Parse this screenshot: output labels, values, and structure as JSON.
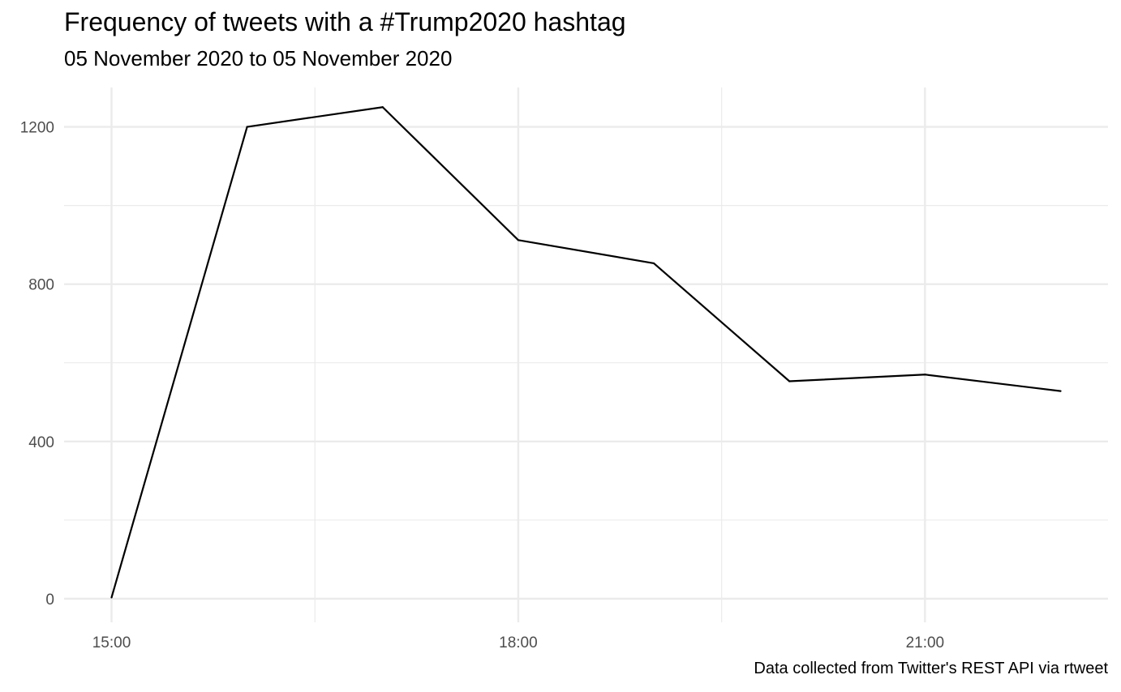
{
  "chart_data": {
    "type": "line",
    "title": "Frequency of tweets with a #Trump2020 hashtag",
    "subtitle": "05 November 2020 to 05 November 2020",
    "caption": "Data collected from Twitter's REST API via rtweet",
    "xlabel": "",
    "ylabel": "",
    "x_unit": "hour of day",
    "xlim": [
      14.65,
      22.35
    ],
    "ylim": [
      -60,
      1300
    ],
    "x_major_ticks": [
      15,
      18,
      21
    ],
    "x_tick_labels": [
      "15:00",
      "18:00",
      "21:00"
    ],
    "x_minor_ticks": [
      16.5,
      19.5
    ],
    "y_major_ticks": [
      0,
      400,
      800,
      1200
    ],
    "y_tick_labels": [
      "0",
      "400",
      "800",
      "1200"
    ],
    "y_minor_ticks": [
      200,
      600,
      1000
    ],
    "grid": true,
    "legend": "none",
    "line_color": "#000000",
    "grid_color": "#ebebeb",
    "series": [
      {
        "x": [
          15,
          16,
          17,
          18,
          19,
          20,
          21,
          22
        ],
        "values": [
          3,
          1200,
          1250,
          912,
          853,
          553,
          570,
          528
        ]
      }
    ]
  }
}
